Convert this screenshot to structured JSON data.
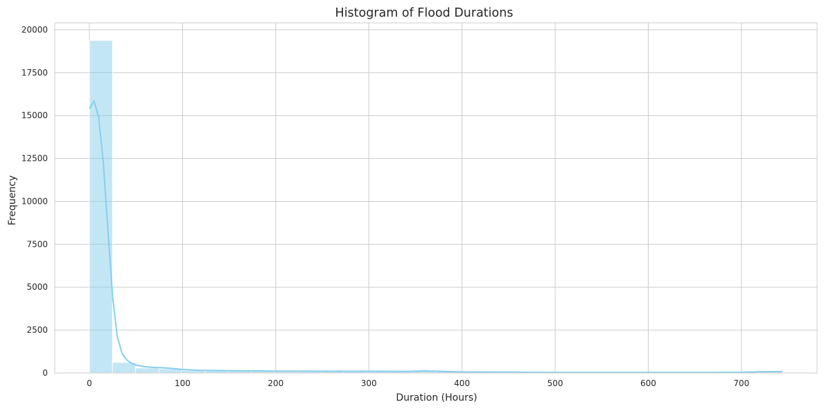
{
  "chart_data": {
    "type": "bar",
    "title": "Histogram of Flood Durations",
    "xlabel": "Duration (Hours)",
    "ylabel": "Frequency",
    "xlim": [
      -37.2,
      781.2
    ],
    "ylim": [
      0,
      20400
    ],
    "xticks": [
      0,
      100,
      200,
      300,
      400,
      500,
      600,
      700
    ],
    "yticks": [
      0,
      2500,
      5000,
      7500,
      10000,
      12500,
      15000,
      17500,
      20000
    ],
    "grid": true,
    "bin_edges": [
      0,
      24.8,
      49.6,
      74.4,
      99.2,
      124,
      148.8,
      173.6,
      198.4,
      223.2,
      248,
      272.8,
      297.6,
      322.4,
      347.2,
      372,
      396.8,
      421.6,
      446.4,
      471.2,
      496,
      520.8,
      545.6,
      570.4,
      595.2,
      620,
      644.8,
      669.6,
      694.4,
      719.2,
      744
    ],
    "values": [
      19380,
      620,
      290,
      240,
      150,
      130,
      110,
      100,
      90,
      80,
      80,
      80,
      90,
      80,
      100,
      90,
      50,
      40,
      40,
      50,
      30,
      30,
      30,
      30,
      30,
      30,
      30,
      30,
      40,
      60
    ],
    "kde": {
      "x": [
        0,
        5,
        10,
        15,
        20,
        25,
        30,
        35,
        40,
        45,
        50,
        60,
        70,
        80,
        90,
        100,
        120,
        150,
        200,
        250,
        300,
        340,
        360,
        380,
        400,
        450,
        500,
        550,
        600,
        650,
        700,
        720,
        744
      ],
      "y": [
        15400,
        15850,
        14900,
        12200,
        8200,
        4400,
        2100,
        1150,
        760,
        570,
        460,
        360,
        320,
        300,
        260,
        200,
        150,
        130,
        110,
        100,
        100,
        90,
        120,
        90,
        60,
        50,
        30,
        30,
        30,
        30,
        40,
        70,
        80
      ]
    },
    "colors": {
      "bar": "#87ceeb",
      "line": "#87ceeb",
      "grid": "#cccccc",
      "frame": "#cccccc"
    }
  }
}
